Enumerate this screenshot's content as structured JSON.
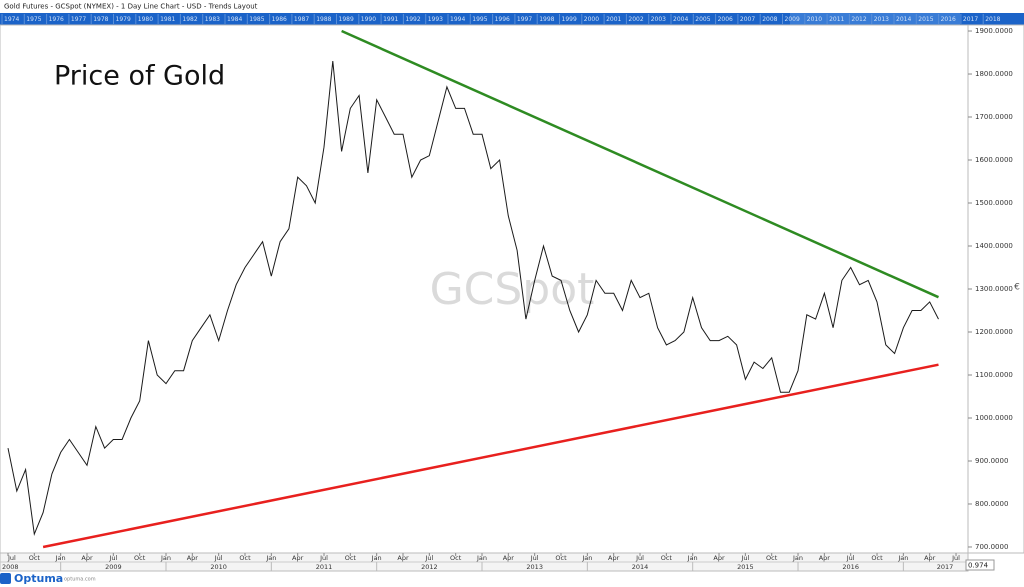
{
  "header": {
    "title": "Gold Futures - GCSpot (NYMEX) - 1 Day Line Chart - USD - Trends Layout"
  },
  "navigator_years": [
    "1974",
    "1975",
    "1976",
    "1977",
    "1978",
    "1979",
    "1980",
    "1981",
    "1982",
    "1983",
    "1984",
    "1985",
    "1986",
    "1987",
    "1988",
    "1989",
    "1990",
    "1991",
    "1992",
    "1993",
    "1994",
    "1995",
    "1996",
    "1997",
    "1998",
    "1999",
    "2000",
    "2001",
    "2002",
    "2003",
    "2004",
    "2005",
    "2006",
    "2007",
    "2008",
    "2009",
    "2010",
    "2011",
    "2012",
    "2013",
    "2014",
    "2015",
    "2016",
    "2017",
    "2018"
  ],
  "footer": {
    "brand": "Optuma",
    "url": "optuma.com",
    "zoom": "0.974"
  },
  "chart_data": {
    "type": "line",
    "title": "Price of Gold",
    "watermark": "GCSpot",
    "color": "#1a1a1a",
    "x": [
      "2008-07",
      "2008-08",
      "2008-09",
      "2008-10",
      "2008-11",
      "2008-12",
      "2009-01",
      "2009-02",
      "2009-03",
      "2009-04",
      "2009-05",
      "2009-06",
      "2009-07",
      "2009-08",
      "2009-09",
      "2009-10",
      "2009-11",
      "2009-12",
      "2010-01",
      "2010-02",
      "2010-03",
      "2010-04",
      "2010-05",
      "2010-06",
      "2010-07",
      "2010-08",
      "2010-09",
      "2010-10",
      "2010-11",
      "2010-12",
      "2011-01",
      "2011-02",
      "2011-03",
      "2011-04",
      "2011-05",
      "2011-06",
      "2011-07",
      "2011-08",
      "2011-09",
      "2011-10",
      "2011-11",
      "2011-12",
      "2012-01",
      "2012-02",
      "2012-03",
      "2012-04",
      "2012-05",
      "2012-06",
      "2012-07",
      "2012-08",
      "2012-09",
      "2012-10",
      "2012-11",
      "2012-12",
      "2013-01",
      "2013-02",
      "2013-03",
      "2013-04",
      "2013-05",
      "2013-06",
      "2013-07",
      "2013-08",
      "2013-09",
      "2013-10",
      "2013-11",
      "2013-12",
      "2014-01",
      "2014-02",
      "2014-03",
      "2014-04",
      "2014-05",
      "2014-06",
      "2014-07",
      "2014-08",
      "2014-09",
      "2014-10",
      "2014-11",
      "2014-12",
      "2015-01",
      "2015-02",
      "2015-03",
      "2015-04",
      "2015-05",
      "2015-06",
      "2015-07",
      "2015-08",
      "2015-09",
      "2015-10",
      "2015-11",
      "2015-12",
      "2016-01",
      "2016-02",
      "2016-03",
      "2016-04",
      "2016-05",
      "2016-06",
      "2016-07",
      "2016-08",
      "2016-09",
      "2016-10",
      "2016-11",
      "2016-12",
      "2017-01",
      "2017-02",
      "2017-03",
      "2017-04",
      "2017-05"
    ],
    "values": [
      930,
      830,
      880,
      730,
      780,
      870,
      920,
      950,
      920,
      890,
      980,
      930,
      950,
      950,
      1000,
      1040,
      1180,
      1100,
      1080,
      1110,
      1110,
      1180,
      1210,
      1240,
      1180,
      1250,
      1310,
      1350,
      1380,
      1410,
      1330,
      1410,
      1440,
      1560,
      1540,
      1500,
      1630,
      1830,
      1620,
      1720,
      1750,
      1570,
      1740,
      1700,
      1660,
      1660,
      1560,
      1600,
      1610,
      1690,
      1770,
      1720,
      1720,
      1660,
      1660,
      1580,
      1600,
      1470,
      1390,
      1230,
      1320,
      1400,
      1330,
      1320,
      1250,
      1200,
      1240,
      1320,
      1290,
      1290,
      1250,
      1320,
      1280,
      1290,
      1210,
      1170,
      1180,
      1200,
      1280,
      1210,
      1180,
      1180,
      1190,
      1170,
      1090,
      1130,
      1115,
      1140,
      1060,
      1060,
      1110,
      1240,
      1230,
      1290,
      1210,
      1320,
      1350,
      1310,
      1320,
      1270,
      1170,
      1150,
      1210,
      1250,
      1250,
      1270,
      1230
    ],
    "trend_lines": [
      {
        "color": "#2e8b22",
        "x": [
          "2011-09",
          "2017-05"
        ],
        "values": [
          1900,
          1281
        ]
      },
      {
        "color": "#e8201e",
        "x": [
          "2008-11",
          "2017-05"
        ],
        "values": [
          700,
          1124
        ]
      }
    ],
    "ylim": [
      686,
      1914
    ],
    "yticks": [
      {
        "value": 700,
        "label": "700.0000"
      },
      {
        "value": 800,
        "label": "800.0000"
      },
      {
        "value": 900,
        "label": "900.0000"
      },
      {
        "value": 1000,
        "label": "1000.0000"
      },
      {
        "value": 1100,
        "label": "1100.0000"
      },
      {
        "value": 1200,
        "label": "1200.0000"
      },
      {
        "value": 1300,
        "label": "1300.0000"
      },
      {
        "value": 1400,
        "label": "1400.0000"
      },
      {
        "value": 1500,
        "label": "1500.0000"
      },
      {
        "value": 1600,
        "label": "1600.0000"
      },
      {
        "value": 1700,
        "label": "1700.0000"
      },
      {
        "value": 1800,
        "label": "1800.0000"
      },
      {
        "value": 1900,
        "label": "1900.0000"
      }
    ],
    "xticks": [
      {
        "value": "2008-07",
        "label": "Jul"
      },
      {
        "value": "2008-10",
        "label": "Oct"
      },
      {
        "value": "2009-01",
        "label": "Jan"
      },
      {
        "value": "2009-04",
        "label": "Apr"
      },
      {
        "value": "2009-07",
        "label": "Jul"
      },
      {
        "value": "2009-10",
        "label": "Oct"
      },
      {
        "value": "2010-01",
        "label": "Jan"
      },
      {
        "value": "2010-04",
        "label": "Apr"
      },
      {
        "value": "2010-07",
        "label": "Jul"
      },
      {
        "value": "2010-10",
        "label": "Oct"
      },
      {
        "value": "2011-01",
        "label": "Jan"
      },
      {
        "value": "2011-04",
        "label": "Apr"
      },
      {
        "value": "2011-07",
        "label": "Jul"
      },
      {
        "value": "2011-10",
        "label": "Oct"
      },
      {
        "value": "2012-01",
        "label": "Jan"
      },
      {
        "value": "2012-04",
        "label": "Apr"
      },
      {
        "value": "2012-07",
        "label": "Jul"
      },
      {
        "value": "2012-10",
        "label": "Oct"
      },
      {
        "value": "2013-01",
        "label": "Jan"
      },
      {
        "value": "2013-04",
        "label": "Apr"
      },
      {
        "value": "2013-07",
        "label": "Jul"
      },
      {
        "value": "2013-10",
        "label": "Oct"
      },
      {
        "value": "2014-01",
        "label": "Jan"
      },
      {
        "value": "2014-04",
        "label": "Apr"
      },
      {
        "value": "2014-07",
        "label": "Jul"
      },
      {
        "value": "2014-10",
        "label": "Oct"
      },
      {
        "value": "2015-01",
        "label": "Jan"
      },
      {
        "value": "2015-04",
        "label": "Apr"
      },
      {
        "value": "2015-07",
        "label": "Jul"
      },
      {
        "value": "2015-10",
        "label": "Oct"
      },
      {
        "value": "2016-01",
        "label": "Jan"
      },
      {
        "value": "2016-04",
        "label": "Apr"
      },
      {
        "value": "2016-07",
        "label": "Jul"
      },
      {
        "value": "2016-10",
        "label": "Oct"
      },
      {
        "value": "2017-01",
        "label": "Jan"
      },
      {
        "value": "2017-04",
        "label": "Apr"
      },
      {
        "value": "2017-07",
        "label": "Jul"
      }
    ],
    "year_ticks": [
      "2008",
      "2009",
      "2010",
      "2011",
      "2012",
      "2013",
      "2014",
      "2015",
      "2016",
      "2017"
    ],
    "grid": false
  }
}
